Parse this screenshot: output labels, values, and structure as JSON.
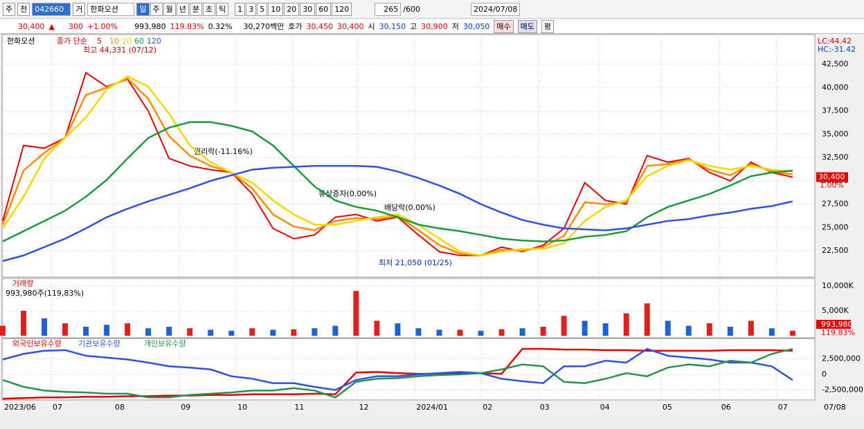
{
  "toolbar": {
    "period": "주",
    "mode": "전",
    "code": "042660",
    "type": "거",
    "name": "한화오션",
    "intervals": [
      "일",
      "주",
      "월",
      "년",
      "분",
      "초",
      "틱"
    ],
    "counts": [
      "1",
      "3",
      "5",
      "10",
      "20",
      "30",
      "60",
      "120"
    ],
    "shown": "265",
    "total": "/600",
    "date": "2024/07/08"
  },
  "info": {
    "price": "30,400",
    "arrow": "▲",
    "change": "300",
    "change_pct": "+1.00%",
    "volume": "993,980",
    "volume_pct": "119.83%",
    "turnover": "0.32%",
    "amount": "30,270백만",
    "quote_label": "호가",
    "ask": "30,450",
    "bid": "30,400",
    "open_label": "시",
    "open": "30,150",
    "high_label": "고",
    "high": "30,900",
    "low_label": "저",
    "low": "30,050",
    "buy": "매수",
    "sell": "매도",
    "avg": "평"
  },
  "chart_data": [
    {
      "type": "line",
      "title": "한화오션",
      "legend_title": "종가 단순",
      "lc": "LC:44.42",
      "hc": "HC:-31.42",
      "last_price": {
        "value": 30400,
        "label": "30,400"
      },
      "last_change": "1.00%",
      "annotations": [
        "최고 44,331 (07/12)",
        "권리락(-11.16%)",
        "유상증자(0.00%)",
        "배당락(0.00%)",
        "최저 21,050 (01/25)"
      ],
      "x": [
        0,
        1,
        2,
        3,
        4,
        5,
        6,
        7,
        8,
        9,
        10,
        11,
        12,
        13,
        14,
        15,
        16,
        17,
        18,
        19,
        20,
        21,
        22,
        23,
        24,
        25,
        26,
        27,
        28,
        29,
        30,
        31,
        32,
        33,
        34,
        35,
        36,
        37,
        38
      ],
      "xlim": [
        0,
        39.07
      ],
      "ylim": [
        19760,
        45690
      ],
      "yticks": [
        {
          "value": 22500,
          "label": "22,500"
        },
        {
          "value": 25000,
          "label": "25,000"
        },
        {
          "value": 27500,
          "label": "27,500"
        },
        {
          "value": 30000,
          "label": "30,000"
        },
        {
          "value": 32500,
          "label": "32,500"
        },
        {
          "value": 35000,
          "label": "35,000"
        },
        {
          "value": 37500,
          "label": "37,500"
        },
        {
          "value": 40000,
          "label": "40,000"
        },
        {
          "value": 42500,
          "label": "42,500"
        }
      ],
      "series": [
        {
          "name": "5",
          "color": "#e00000",
          "values": [
            25700,
            33800,
            33500,
            34600,
            41600,
            40100,
            40900,
            37500,
            32400,
            31600,
            31200,
            30900,
            28600,
            24900,
            23800,
            24200,
            26100,
            26400,
            25700,
            26100,
            24200,
            22400,
            22000,
            22000,
            22900,
            22400,
            23100,
            24900,
            29800,
            27900,
            27500,
            32700,
            32000,
            32400,
            30900,
            30000,
            32000,
            30900,
            30400
          ]
        },
        {
          "name": "10",
          "color": "#ff8c00",
          "values": [
            25300,
            31100,
            33000,
            34600,
            39200,
            40000,
            41000,
            38800,
            34800,
            32700,
            31600,
            30900,
            29200,
            26400,
            25100,
            24700,
            25700,
            26000,
            25900,
            26200,
            24700,
            23100,
            22200,
            22000,
            22600,
            22500,
            22900,
            24100,
            27700,
            27500,
            27700,
            31600,
            31800,
            32300,
            31200,
            30600,
            31800,
            31000,
            30700
          ]
        },
        {
          "name": "20",
          "color": "#f0d800",
          "values": [
            24900,
            28300,
            32400,
            34600,
            36800,
            39800,
            41200,
            40100,
            37200,
            33800,
            32000,
            30900,
            29800,
            27900,
            26400,
            25300,
            25300,
            25700,
            26100,
            26400,
            25300,
            23800,
            22400,
            22000,
            22400,
            22700,
            22700,
            23300,
            25700,
            27200,
            27900,
            30500,
            31600,
            32200,
            31600,
            31200,
            31600,
            31200,
            31000
          ]
        },
        {
          "name": "60",
          "color": "#1a9a3a",
          "values": [
            23500,
            24600,
            25700,
            26800,
            28300,
            30100,
            32400,
            34600,
            35700,
            36300,
            36300,
            35900,
            35300,
            33800,
            31600,
            29400,
            27900,
            27200,
            26800,
            26100,
            25300,
            24900,
            24600,
            24200,
            23800,
            23600,
            23500,
            23600,
            24000,
            24200,
            24600,
            26100,
            27200,
            27900,
            28600,
            29500,
            30500,
            30900,
            31100
          ]
        },
        {
          "name": "120",
          "color": "#3050e0",
          "values": [
            21400,
            22000,
            22900,
            23800,
            24900,
            26100,
            27000,
            27800,
            28500,
            29200,
            30000,
            30600,
            31200,
            31400,
            31500,
            31600,
            31600,
            31600,
            31500,
            31000,
            30300,
            29500,
            28600,
            27500,
            26600,
            25800,
            25300,
            24900,
            24800,
            24700,
            24900,
            25300,
            25700,
            25900,
            26300,
            26600,
            27000,
            27300,
            27800
          ]
        }
      ]
    },
    {
      "type": "bar",
      "title": "거래량",
      "subtitle": "993,980주(119,83%)",
      "last_value": "993,980",
      "last_pct": "119.83%",
      "ylim": [
        -280,
        11390
      ],
      "yticks": [
        {
          "value": 5000,
          "label": "5,000K"
        },
        {
          "value": 10000,
          "label": "10,000K"
        }
      ],
      "values": [
        2000,
        5000,
        3500,
        2500,
        1800,
        2200,
        2500,
        1500,
        1800,
        1500,
        1200,
        1000,
        1500,
        1200,
        1300,
        1500,
        2000,
        9000,
        3000,
        2500,
        1500,
        1200,
        1200,
        1000,
        1300,
        1500,
        1800,
        4000,
        3000,
        2500,
        4500,
        6500,
        3000,
        2000,
        2500,
        1800,
        3000,
        1500,
        994
      ],
      "colors": [
        "#e02020",
        "#e02020",
        "#2060d0",
        "#e02020",
        "#2060d0",
        "#2060d0",
        "#e02020",
        "#2060d0",
        "#2060d0",
        "#e02020",
        "#2060d0",
        "#2060d0",
        "#e02020",
        "#2060d0",
        "#e02020",
        "#2060d0",
        "#2060d0",
        "#e02020",
        "#e02020",
        "#2060d0",
        "#2060d0",
        "#2060d0",
        "#e02020",
        "#2060d0",
        "#e02020",
        "#2060d0",
        "#e02020",
        "#e02020",
        "#2060d0",
        "#2060d0",
        "#e02020",
        "#e02020",
        "#2060d0",
        "#2060d0",
        "#e02020",
        "#2060d0",
        "#e02020",
        "#2060d0",
        "#e02020"
      ]
    },
    {
      "type": "line",
      "last_date": "07/08",
      "ylim": [
        -4000000,
        5660000
      ],
      "yticks": [
        {
          "value": -2500000,
          "label": "-2,500,000"
        },
        0,
        {
          "value": 2500000,
          "label": "2,500,000"
        }
      ],
      "xticks": [
        {
          "value": 0,
          "label": "2023/06"
        },
        {
          "value": 2.33,
          "label": "07"
        },
        {
          "value": 5.33,
          "label": "08"
        },
        {
          "value": 8.5,
          "label": "09"
        },
        {
          "value": 11.23,
          "label": "10"
        },
        {
          "value": 13.97,
          "label": "11"
        },
        {
          "value": 17.07,
          "label": "12"
        },
        {
          "value": 19.83,
          "label": "2024/01"
        },
        {
          "value": 23.03,
          "label": "02"
        },
        {
          "value": 25.77,
          "label": "03"
        },
        {
          "value": 28.67,
          "label": "04"
        },
        {
          "value": 31.67,
          "label": "05"
        },
        {
          "value": 34.5,
          "label": "06"
        },
        {
          "value": 37.23,
          "label": "07"
        }
      ],
      "series": [
        {
          "name": "외국인보유수량",
          "color": "#e00000",
          "values": [
            -3900000,
            -3800000,
            -3700000,
            -3700000,
            -3600000,
            -3600000,
            -3500000,
            -3500000,
            -3400000,
            -3400000,
            -3300000,
            -3300000,
            -3200000,
            -3200000,
            -3200000,
            -3100000,
            -3200000,
            300000,
            400000,
            200000,
            100000,
            100000,
            200000,
            200000,
            100000,
            4100000,
            4100000,
            4000000,
            4000000,
            3900000,
            3900000,
            3800000,
            3800000,
            3800000,
            3800000,
            3900000,
            3900000,
            3900000,
            3800000
          ]
        },
        {
          "name": "기관보유수량",
          "color": "#3050e0",
          "values": [
            2400000,
            3300000,
            3800000,
            3900000,
            3000000,
            2700000,
            2400000,
            1900000,
            1300000,
            1100000,
            800000,
            -300000,
            -700000,
            -1400000,
            -1400000,
            -2000000,
            -2500000,
            -900000,
            -300000,
            -300000,
            0,
            200000,
            400000,
            200000,
            -700000,
            -1100000,
            -1400000,
            1300000,
            1300000,
            2200000,
            1900000,
            4100000,
            3000000,
            2700000,
            2400000,
            1900000,
            1900000,
            1300000,
            -900000
          ]
        },
        {
          "name": "개인보유수량",
          "color": "#2a9050",
          "values": [
            -900000,
            -2000000,
            -2600000,
            -2800000,
            -2900000,
            -3100000,
            -3100000,
            -3700000,
            -3700000,
            -3300000,
            -3100000,
            -2900000,
            -2600000,
            -2600000,
            -2200000,
            -2600000,
            -3700000,
            -1200000,
            -700000,
            -600000,
            -300000,
            -100000,
            0,
            200000,
            800000,
            1600000,
            1300000,
            -1200000,
            -1400000,
            -700000,
            200000,
            -300000,
            1100000,
            1600000,
            1300000,
            2200000,
            1900000,
            3300000,
            4100000
          ]
        }
      ]
    }
  ]
}
